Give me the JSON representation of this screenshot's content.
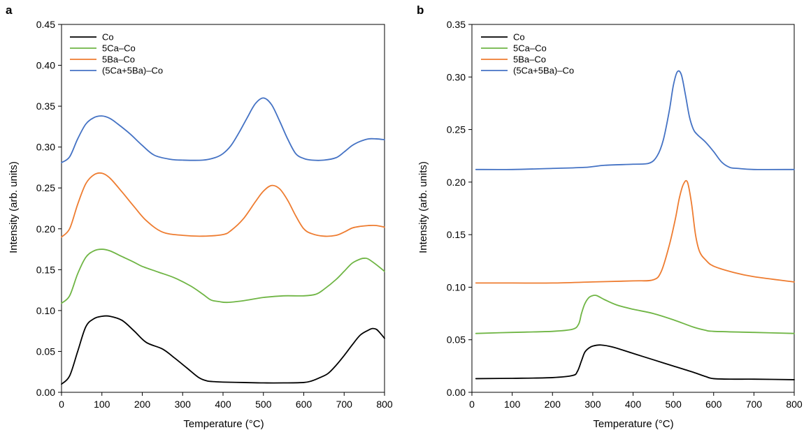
{
  "chart_data": [
    {
      "type": "line",
      "panel_label": "a",
      "xlabel": "Temperature (°C)",
      "ylabel": "Intensity (arb. units)",
      "xlim": [
        0,
        800
      ],
      "ylim": [
        0,
        0.45
      ],
      "xticks": [
        0,
        100,
        200,
        300,
        400,
        500,
        600,
        700,
        800
      ],
      "yticks": [
        "0.00",
        "0.05",
        "0.10",
        "0.15",
        "0.20",
        "0.25",
        "0.30",
        "0.35",
        "0.40",
        "0.45"
      ],
      "grid": false,
      "legend_position": "top-left",
      "series": [
        {
          "name": "Co",
          "color": "#000000",
          "x": [
            0,
            20,
            40,
            60,
            80,
            100,
            120,
            150,
            180,
            210,
            250,
            280,
            310,
            340,
            360,
            380,
            400,
            450,
            500,
            550,
            600,
            620,
            640,
            660,
            680,
            700,
            720,
            740,
            760,
            770,
            780,
            790,
            800
          ],
          "y": [
            0.01,
            0.02,
            0.05,
            0.08,
            0.09,
            0.093,
            0.093,
            0.088,
            0.075,
            0.061,
            0.053,
            0.042,
            0.03,
            0.018,
            0.014,
            0.013,
            0.0125,
            0.012,
            0.0115,
            0.0115,
            0.012,
            0.014,
            0.018,
            0.023,
            0.033,
            0.045,
            0.058,
            0.07,
            0.076,
            0.078,
            0.077,
            0.072,
            0.066
          ]
        },
        {
          "name": "5Ca–Co",
          "color": "#6fb544",
          "x": [
            0,
            20,
            40,
            60,
            80,
            100,
            120,
            150,
            180,
            200,
            240,
            280,
            320,
            350,
            370,
            390,
            410,
            450,
            500,
            550,
            600,
            630,
            650,
            680,
            700,
            720,
            740,
            750,
            760,
            780,
            800
          ],
          "y": [
            0.109,
            0.118,
            0.145,
            0.165,
            0.173,
            0.175,
            0.173,
            0.166,
            0.159,
            0.154,
            0.147,
            0.14,
            0.13,
            0.12,
            0.113,
            0.111,
            0.11,
            0.112,
            0.116,
            0.118,
            0.118,
            0.12,
            0.126,
            0.138,
            0.148,
            0.158,
            0.163,
            0.164,
            0.163,
            0.156,
            0.148
          ]
        },
        {
          "name": "5Ba–Co",
          "color": "#ee7c30",
          "x": [
            0,
            20,
            40,
            60,
            80,
            100,
            120,
            150,
            180,
            210,
            250,
            300,
            350,
            400,
            420,
            450,
            480,
            500,
            520,
            540,
            560,
            580,
            600,
            620,
            650,
            680,
            700,
            720,
            740,
            760,
            780,
            800
          ],
          "y": [
            0.19,
            0.2,
            0.23,
            0.255,
            0.266,
            0.268,
            0.262,
            0.245,
            0.227,
            0.21,
            0.196,
            0.192,
            0.191,
            0.193,
            0.198,
            0.212,
            0.233,
            0.246,
            0.253,
            0.249,
            0.235,
            0.216,
            0.2,
            0.194,
            0.191,
            0.192,
            0.196,
            0.201,
            0.203,
            0.204,
            0.204,
            0.202
          ]
        },
        {
          "name": "(5Ca+5Ba)–Co",
          "color": "#4472c4",
          "x": [
            0,
            20,
            40,
            60,
            80,
            100,
            120,
            140,
            170,
            200,
            230,
            270,
            300,
            350,
            380,
            400,
            420,
            440,
            460,
            480,
            500,
            520,
            540,
            560,
            580,
            600,
            620,
            650,
            680,
            700,
            720,
            740,
            760,
            780,
            800
          ],
          "y": [
            0.281,
            0.288,
            0.31,
            0.328,
            0.336,
            0.338,
            0.335,
            0.328,
            0.316,
            0.302,
            0.29,
            0.285,
            0.284,
            0.284,
            0.287,
            0.292,
            0.302,
            0.318,
            0.336,
            0.353,
            0.36,
            0.352,
            0.332,
            0.31,
            0.292,
            0.286,
            0.284,
            0.284,
            0.287,
            0.294,
            0.302,
            0.307,
            0.31,
            0.31,
            0.309
          ]
        }
      ]
    },
    {
      "type": "line",
      "panel_label": "b",
      "xlabel": "Temperature (°C)",
      "ylabel": "Intensity (arb. units)",
      "xlim": [
        0,
        800
      ],
      "ylim": [
        0,
        0.35
      ],
      "xticks": [
        0,
        100,
        200,
        300,
        400,
        500,
        600,
        700,
        800
      ],
      "yticks": [
        "0.00",
        "0.05",
        "0.10",
        "0.15",
        "0.20",
        "0.25",
        "0.30",
        "0.35"
      ],
      "grid": false,
      "legend_position": "top-left",
      "series": [
        {
          "name": "Co",
          "color": "#000000",
          "x": [
            10,
            100,
            200,
            250,
            262,
            272,
            280,
            290,
            300,
            320,
            350,
            400,
            450,
            500,
            550,
            580,
            600,
            650,
            700,
            800
          ],
          "y": [
            0.013,
            0.0133,
            0.014,
            0.016,
            0.02,
            0.03,
            0.038,
            0.042,
            0.044,
            0.045,
            0.043,
            0.037,
            0.031,
            0.025,
            0.019,
            0.015,
            0.013,
            0.0125,
            0.0125,
            0.012
          ]
        },
        {
          "name": "5Ca–Co",
          "color": "#6fb544",
          "x": [
            10,
            100,
            200,
            250,
            265,
            272,
            280,
            290,
            300,
            310,
            330,
            360,
            400,
            450,
            500,
            550,
            580,
            600,
            700,
            800
          ],
          "y": [
            0.056,
            0.057,
            0.058,
            0.06,
            0.065,
            0.075,
            0.084,
            0.09,
            0.092,
            0.092,
            0.088,
            0.083,
            0.079,
            0.075,
            0.069,
            0.062,
            0.059,
            0.058,
            0.057,
            0.056
          ]
        },
        {
          "name": "5Ba–Co",
          "color": "#ee7c30",
          "x": [
            10,
            100,
            200,
            300,
            400,
            450,
            470,
            490,
            505,
            515,
            525,
            535,
            545,
            555,
            565,
            580,
            600,
            650,
            700,
            800
          ],
          "y": [
            0.104,
            0.104,
            0.104,
            0.105,
            0.106,
            0.107,
            0.115,
            0.14,
            0.165,
            0.185,
            0.198,
            0.2,
            0.18,
            0.15,
            0.134,
            0.126,
            0.12,
            0.114,
            0.11,
            0.105
          ]
        },
        {
          "name": "(5Ca+5Ba)–Co",
          "color": "#4472c4",
          "x": [
            10,
            100,
            200,
            280,
            330,
            400,
            440,
            460,
            475,
            490,
            500,
            510,
            520,
            530,
            540,
            550,
            560,
            580,
            600,
            620,
            640,
            660,
            700,
            800
          ],
          "y": [
            0.212,
            0.212,
            0.213,
            0.214,
            0.216,
            0.217,
            0.218,
            0.225,
            0.24,
            0.268,
            0.292,
            0.305,
            0.302,
            0.283,
            0.262,
            0.25,
            0.245,
            0.238,
            0.229,
            0.219,
            0.214,
            0.213,
            0.212,
            0.212
          ]
        }
      ]
    }
  ]
}
